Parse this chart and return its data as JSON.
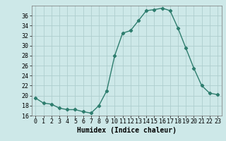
{
  "x": [
    0,
    1,
    2,
    3,
    4,
    5,
    6,
    7,
    8,
    9,
    10,
    11,
    12,
    13,
    14,
    15,
    16,
    17,
    18,
    19,
    20,
    21,
    22,
    23
  ],
  "y": [
    19.5,
    18.5,
    18.3,
    17.5,
    17.2,
    17.2,
    16.8,
    16.5,
    18.0,
    21.0,
    28.0,
    32.5,
    33.0,
    35.0,
    37.0,
    37.2,
    37.5,
    37.0,
    33.5,
    29.5,
    25.5,
    22.0,
    20.5,
    20.2
  ],
  "line_color": "#2e7d6e",
  "marker": "D",
  "marker_size": 2.2,
  "bg_color": "#cde8e8",
  "grid_color": "#aecece",
  "xlabel": "Humidex (Indice chaleur)",
  "ylim": [
    16,
    38
  ],
  "yticks": [
    16,
    18,
    20,
    22,
    24,
    26,
    28,
    30,
    32,
    34,
    36
  ],
  "xlim": [
    -0.5,
    23.5
  ],
  "xticks": [
    0,
    1,
    2,
    3,
    4,
    5,
    6,
    7,
    8,
    9,
    10,
    11,
    12,
    13,
    14,
    15,
    16,
    17,
    18,
    19,
    20,
    21,
    22,
    23
  ],
  "xlabel_fontsize": 7,
  "tick_fontsize": 6,
  "line_width": 1.0
}
